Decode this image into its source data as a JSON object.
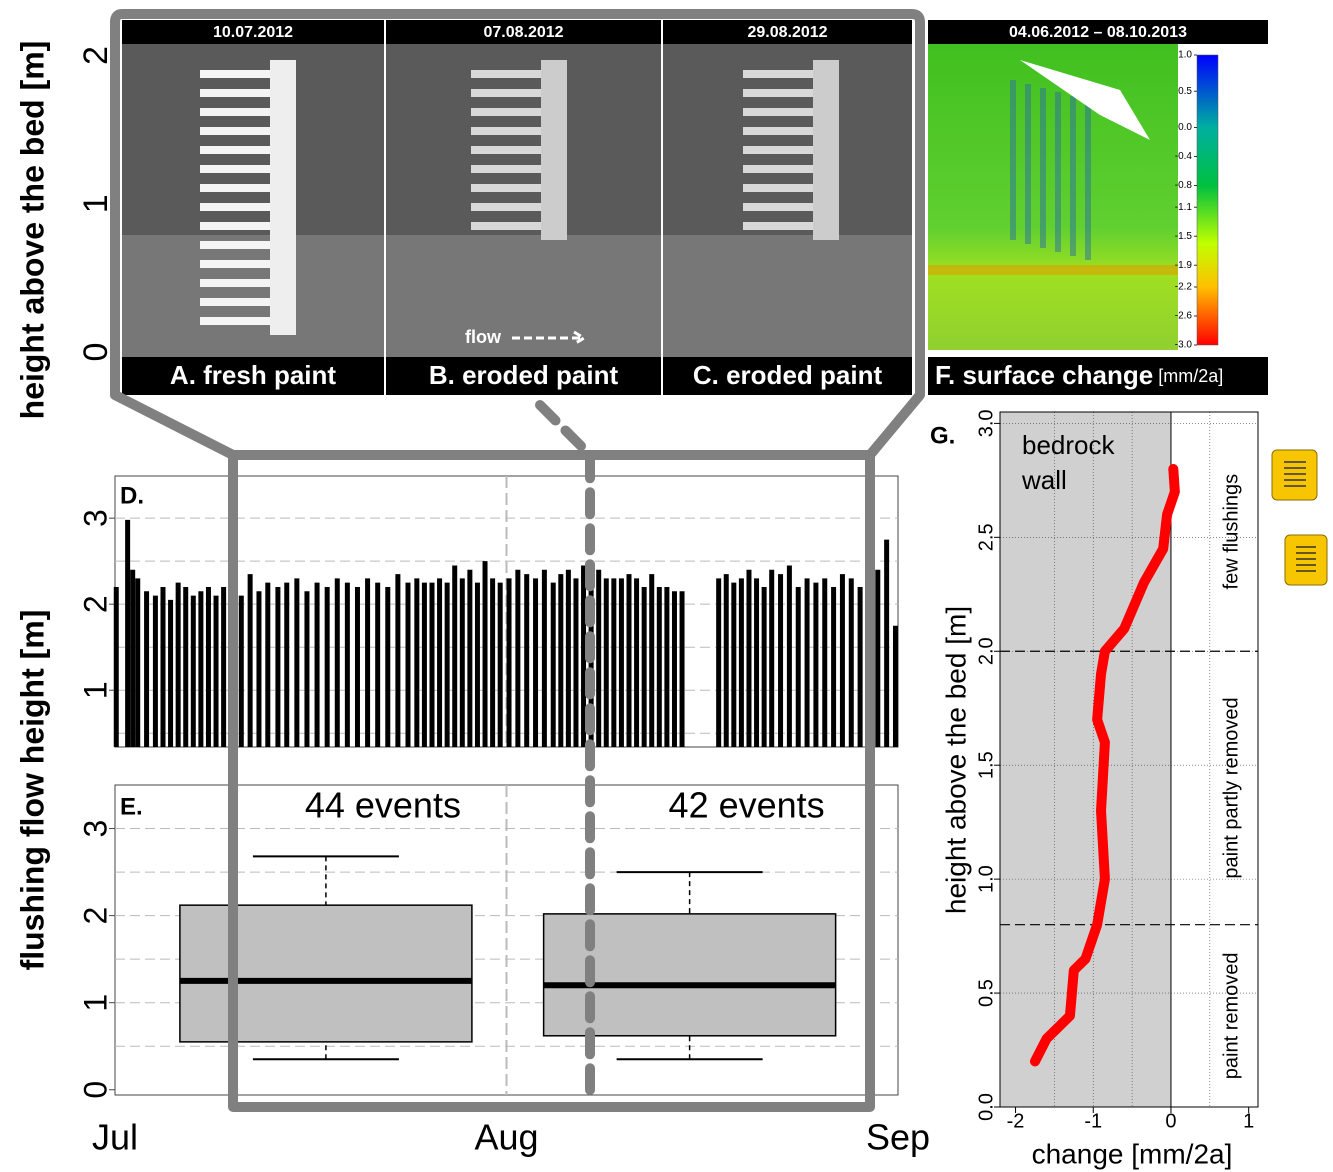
{
  "chart_data": [
    {
      "type": "image",
      "ylabel": "height above the bed [m]",
      "ylim": [
        -0.29,
        2.24
      ],
      "yticks": [
        0,
        1,
        2
      ],
      "panels": [
        {
          "date": "10.07.2012",
          "caption": "A. fresh paint"
        },
        {
          "date": "07.08.2012",
          "caption": "B. eroded paint"
        },
        {
          "date": "29.08.2012",
          "caption": "C. eroded paint"
        }
      ],
      "flow_label": "flow"
    },
    {
      "type": "heatmap",
      "date": "04.06.2012 – 08.10.2013",
      "caption": "F. surface change",
      "caption_unit": "[mm/2a]",
      "clim": [
        -3.0,
        1.0
      ],
      "cticks": [
        {
          "value": 1.0,
          "label": "1.0"
        },
        0.5,
        {
          "value": 0.0,
          "label": "0.0"
        },
        -0.4,
        -0.8,
        -1.1,
        -1.5,
        -1.9,
        -2.2,
        -2.6,
        {
          "value": -3.0,
          "label": "-3.0"
        }
      ]
    },
    {
      "type": "spike",
      "panel_label": "D.",
      "ylabel": "flushing flow height [m]",
      "xlim": [
        0,
        62
      ],
      "ylim": [
        0.34,
        3.49
      ],
      "yticks": [
        1,
        2,
        3
      ],
      "grid_y": [
        0.5,
        1,
        1.5,
        2,
        2.5,
        3
      ],
      "color": "#000000",
      "x": [
        0.1,
        1.0,
        1.4,
        1.8,
        2.5,
        3.2,
        3.8,
        4.4,
        5.0,
        5.6,
        6.2,
        6.8,
        7.4,
        8.0,
        8.6,
        9.3,
        10.0,
        10.7,
        11.4,
        12.1,
        12.9,
        13.6,
        14.4,
        15.2,
        16.0,
        16.8,
        17.6,
        18.4,
        19.2,
        20.0,
        20.8,
        21.6,
        22.4,
        23.2,
        23.9,
        24.5,
        25.1,
        25.7,
        26.3,
        26.9,
        27.5,
        28.1,
        28.7,
        29.3,
        29.9,
        30.5,
        31.2,
        31.9,
        32.6,
        33.3,
        34.0,
        34.7,
        35.3,
        35.9,
        36.5,
        37.1,
        37.7,
        38.3,
        38.9,
        39.5,
        40.1,
        40.7,
        41.3,
        41.9,
        42.5,
        43.1,
        43.7,
        44.3,
        44.9,
        47.8,
        48.4,
        49.0,
        49.6,
        50.2,
        50.8,
        51.4,
        52.0,
        52.7,
        53.4,
        54.1,
        54.8,
        55.5,
        56.2,
        56.9,
        57.6,
        58.3,
        59.0,
        59.7,
        60.4,
        61.1,
        61.8
      ],
      "values": [
        2.2,
        2.98,
        2.4,
        2.3,
        2.15,
        2.1,
        2.2,
        2.05,
        2.25,
        2.2,
        2.1,
        2.15,
        2.2,
        2.1,
        2.2,
        2.25,
        2.1,
        2.35,
        2.15,
        2.25,
        2.2,
        2.25,
        2.3,
        2.15,
        2.25,
        2.2,
        2.3,
        2.25,
        2.2,
        2.3,
        2.25,
        2.2,
        2.35,
        2.25,
        2.3,
        2.25,
        2.25,
        2.3,
        2.25,
        2.45,
        2.3,
        2.4,
        2.25,
        2.5,
        2.3,
        2.25,
        2.3,
        2.4,
        2.35,
        2.3,
        2.4,
        2.25,
        2.35,
        2.4,
        2.3,
        2.45,
        2.35,
        2.4,
        2.3,
        2.3,
        2.3,
        2.35,
        2.3,
        2.2,
        2.35,
        2.2,
        2.2,
        2.15,
        2.15,
        2.3,
        2.35,
        2.25,
        2.3,
        2.4,
        2.3,
        2.2,
        2.4,
        2.35,
        2.45,
        2.2,
        2.3,
        2.25,
        2.3,
        2.2,
        2.35,
        2.3,
        2.2,
        2.2,
        2.4,
        2.75,
        1.75
      ]
    },
    {
      "type": "box",
      "panel_label": "E.",
      "xlim": [
        0,
        62
      ],
      "ylim": [
        -0.06,
        3.5
      ],
      "yticks": [
        0,
        1,
        2,
        3
      ],
      "grid_y": [
        0.5,
        1,
        1.5,
        2,
        2.5,
        3
      ],
      "xticks": [
        {
          "value": 0,
          "label": "Jul"
        },
        {
          "value": 31,
          "label": "Aug"
        },
        {
          "value": 62,
          "label": "Sep"
        }
      ],
      "color": "#c0c0c0",
      "boxes": [
        {
          "label": "44 events",
          "x": 16.7,
          "whisker_low": 0.35,
          "q1": 0.55,
          "median": 1.25,
          "q3": 2.12,
          "whisker_high": 2.68
        },
        {
          "label": "42 events",
          "x": 45.5,
          "whisker_low": 0.35,
          "q1": 0.62,
          "median": 1.2,
          "q3": 2.02,
          "whisker_high": 2.5
        }
      ]
    },
    {
      "type": "line",
      "panel_label": "G.",
      "xlabel": "change [mm/2a]",
      "ylabel": "height above the bed [m]",
      "xlim": [
        -2.2,
        1.12
      ],
      "ylim": [
        0,
        3.05
      ],
      "xticks": [
        -2,
        -1,
        0,
        1
      ],
      "yticks": [
        {
          "value": 0,
          "label": "0.0"
        },
        0.5,
        {
          "value": 1,
          "label": "1.0"
        },
        1.5,
        {
          "value": 2,
          "label": "2.0"
        },
        2.5,
        {
          "value": 3,
          "label": "3.0"
        }
      ],
      "grid_x": [
        -1.5,
        -1,
        -0.5,
        0.5
      ],
      "wall_edge": 0,
      "wall_label": [
        "bedrock",
        "wall"
      ],
      "zone_lines": [
        0.8,
        2.0
      ],
      "zones": [
        "paint removed",
        "paint partly removed",
        "few flushings"
      ],
      "color": "#ff0000",
      "x": [
        -1.75,
        -1.6,
        -1.3,
        -1.25,
        -1.1,
        -0.95,
        -0.85,
        -0.9,
        -0.85,
        -0.95,
        -0.9,
        -0.85,
        -0.6,
        -0.35,
        -0.1,
        -0.05,
        0.05,
        0.03
      ],
      "values": [
        0.2,
        0.3,
        0.4,
        0.6,
        0.65,
        0.8,
        1.0,
        1.3,
        1.6,
        1.7,
        1.9,
        2.0,
        2.1,
        2.3,
        2.45,
        2.6,
        2.7,
        2.8
      ]
    }
  ]
}
